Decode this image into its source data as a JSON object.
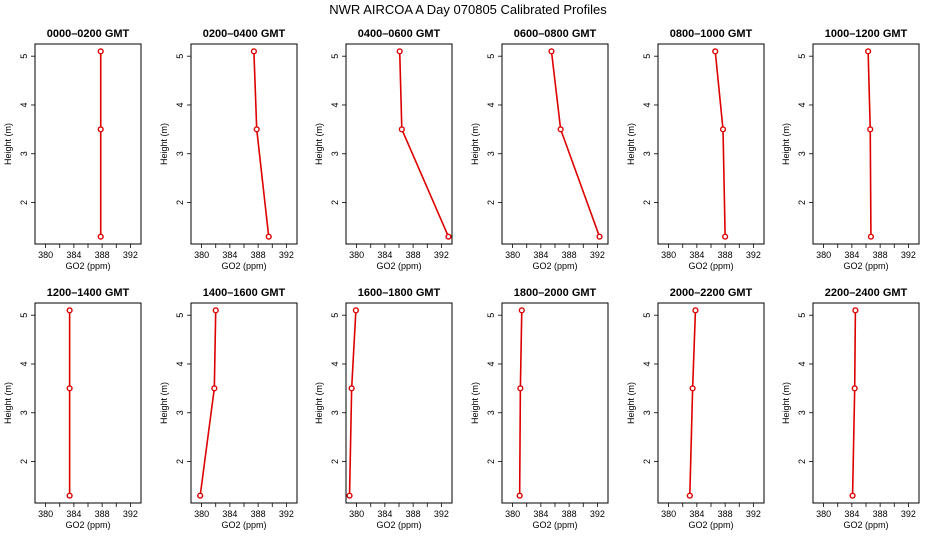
{
  "chart_data": {
    "type": "line",
    "title": "NWR AIRCOA A  Day 070805  Calibrated Profiles",
    "xlabel": "GO2 (ppm)",
    "ylabel": "Height (m)",
    "xlim": [
      378.5,
      393.5
    ],
    "ylim": [
      1.15,
      5.25
    ],
    "xticks": [
      380,
      384,
      388,
      392
    ],
    "xticks_minor": [
      382,
      386,
      390
    ],
    "yticks": [
      2,
      3,
      4,
      5
    ],
    "heights": [
      1.3,
      3.5,
      5.1
    ],
    "line_color": "#dd0000",
    "panels": [
      {
        "title": "0000–0200 GMT",
        "x": [
          387.8,
          387.8,
          387.8
        ]
      },
      {
        "title": "0200–0400 GMT",
        "x": [
          389.5,
          387.8,
          387.4
        ]
      },
      {
        "title": "0400–0600 GMT",
        "x": [
          393.0,
          386.4,
          386.1
        ]
      },
      {
        "title": "0600–0800 GMT",
        "x": [
          392.3,
          386.8,
          385.5
        ]
      },
      {
        "title": "0800–1000 GMT",
        "x": [
          388.0,
          387.7,
          386.6
        ]
      },
      {
        "title": "1000–1200 GMT",
        "x": [
          386.7,
          386.6,
          386.3
        ]
      },
      {
        "title": "1200–1400 GMT",
        "x": [
          383.4,
          383.4,
          383.4
        ]
      },
      {
        "title": "1400–1600 GMT",
        "x": [
          379.8,
          381.8,
          382.0
        ]
      },
      {
        "title": "1600–1800 GMT",
        "x": [
          379.0,
          379.3,
          379.9
        ]
      },
      {
        "title": "1800–2000 GMT",
        "x": [
          381.0,
          381.1,
          381.3
        ]
      },
      {
        "title": "2000–2200 GMT",
        "x": [
          383.0,
          383.4,
          383.8
        ]
      },
      {
        "title": "2200–2400 GMT",
        "x": [
          384.1,
          384.4,
          384.5
        ]
      }
    ]
  }
}
